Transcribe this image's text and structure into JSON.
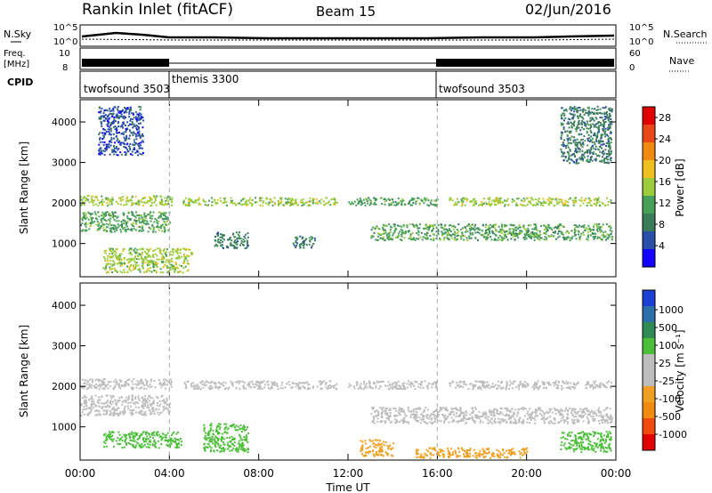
{
  "header": {
    "station": "Rankin Inlet (fitACF)",
    "beam": "Beam 15",
    "date": "02/Jun/2016"
  },
  "noise_panel": {
    "left_label": "N.Sky",
    "right_label": "N.Search",
    "left_ticks": [
      "10^5",
      "10^0"
    ],
    "right_ticks": [
      "10^5",
      "10^0"
    ]
  },
  "freq_panel": {
    "left_label_line1": "Freq.",
    "left_label_line2": "[MHz]",
    "left_ticks": [
      "10",
      "8"
    ],
    "right_label": "Nave",
    "right_ticks": [
      "60",
      "0"
    ]
  },
  "cpid_panel": {
    "label": "CPID",
    "segments": [
      {
        "name": "twofsound 3503",
        "start": 0,
        "end": 4
      },
      {
        "name": "themis 3300",
        "start": 4,
        "end": 16
      },
      {
        "name": "twofsound 3503",
        "start": 16,
        "end": 24
      }
    ]
  },
  "colors": {
    "power_scale": [
      "#1400ff",
      "#2a4fa8",
      "#3b7b5a",
      "#47a05a",
      "#9ccc3c",
      "#f0c020",
      "#f08a10",
      "#e84818",
      "#e00000"
    ],
    "velocity_scale": [
      "#1e3fd6",
      "#2c6ea8",
      "#2f8a55",
      "#4cbf3a",
      "#bdbdbd",
      "#bdbdbd",
      "#f0a020",
      "#f08a10",
      "#f04a10",
      "#e00000"
    ],
    "ground_scatter": "#bdbdbd"
  },
  "chart_data": [
    {
      "type": "heatmap",
      "title": "",
      "xlabel": "Time UT",
      "ylabel": "Slant Range [km]",
      "xlim": [
        0,
        24
      ],
      "ylim": [
        180,
        4550
      ],
      "x_ticks": [
        "00:00",
        "04:00",
        "08:00",
        "12:00",
        "16:00",
        "20:00",
        "00:00"
      ],
      "y_ticks": [
        1000,
        2000,
        3000,
        4000
      ],
      "colorbar": {
        "label": "Power [dB]",
        "ticks": [
          "4",
          "8",
          "12",
          "16",
          "20",
          "24",
          "28"
        ],
        "range": [
          0,
          30
        ]
      },
      "regions": [
        {
          "t0": 0.0,
          "t1": 4.1,
          "r0": 1950,
          "r1": 2200,
          "level": 16
        },
        {
          "t0": 4.6,
          "t1": 11.5,
          "r0": 1950,
          "r1": 2150,
          "level": 14
        },
        {
          "t0": 12.0,
          "t1": 16.0,
          "r0": 1950,
          "r1": 2150,
          "level": 10
        },
        {
          "t0": 16.5,
          "t1": 23.8,
          "r0": 1950,
          "r1": 2150,
          "level": 15
        },
        {
          "t0": 0.0,
          "t1": 4.0,
          "r0": 1300,
          "r1": 1800,
          "level": 12
        },
        {
          "t0": 13.0,
          "t1": 23.8,
          "r0": 1100,
          "r1": 1500,
          "level": 10
        },
        {
          "t0": 1.0,
          "t1": 5.0,
          "r0": 300,
          "r1": 900,
          "level": 14
        },
        {
          "t0": 6.0,
          "t1": 7.5,
          "r0": 900,
          "r1": 1300,
          "level": 8
        },
        {
          "t0": 0.8,
          "t1": 2.8,
          "r0": 3200,
          "r1": 4400,
          "level": 6
        },
        {
          "t0": 21.5,
          "t1": 23.8,
          "r0": 3000,
          "r1": 4400,
          "level": 8
        },
        {
          "t0": 9.5,
          "t1": 10.5,
          "r0": 900,
          "r1": 1200,
          "level": 7
        }
      ]
    },
    {
      "type": "heatmap",
      "title": "",
      "xlabel": "Time UT",
      "ylabel": "Slant Range [km]",
      "xlim": [
        0,
        24
      ],
      "ylim": [
        180,
        4550
      ],
      "x_ticks": [
        "00:00",
        "04:00",
        "08:00",
        "12:00",
        "16:00",
        "20:00",
        "00:00"
      ],
      "y_ticks": [
        1000,
        2000,
        3000,
        4000
      ],
      "colorbar": {
        "label": "Velocity [m s⁻¹]",
        "ticks": [
          "1000",
          "500",
          "100",
          "25",
          "-25",
          "-100",
          "-500",
          "-1000"
        ],
        "range": [
          -1000,
          1000
        ]
      },
      "regions": [
        {
          "t0": 0.0,
          "t1": 4.1,
          "r0": 1950,
          "r1": 2200,
          "level": 0
        },
        {
          "t0": 4.6,
          "t1": 11.5,
          "r0": 1950,
          "r1": 2150,
          "level": 0
        },
        {
          "t0": 12.0,
          "t1": 16.0,
          "r0": 1950,
          "r1": 2150,
          "level": 0
        },
        {
          "t0": 16.5,
          "t1": 23.8,
          "r0": 1950,
          "r1": 2150,
          "level": 0
        },
        {
          "t0": 0.0,
          "t1": 4.0,
          "r0": 1300,
          "r1": 1800,
          "level": 0
        },
        {
          "t0": 13.0,
          "t1": 23.8,
          "r0": 1100,
          "r1": 1500,
          "level": 0
        },
        {
          "t0": 1.0,
          "t1": 4.5,
          "r0": 500,
          "r1": 900,
          "level": 150
        },
        {
          "t0": 5.5,
          "t1": 7.5,
          "r0": 400,
          "r1": 1100,
          "level": 300
        },
        {
          "t0": 12.5,
          "t1": 14.0,
          "r0": 300,
          "r1": 700,
          "level": -200
        },
        {
          "t0": 21.5,
          "t1": 23.8,
          "r0": 400,
          "r1": 900,
          "level": 300
        },
        {
          "t0": 15.0,
          "t1": 20.0,
          "r0": 250,
          "r1": 500,
          "level": -150
        }
      ]
    }
  ]
}
